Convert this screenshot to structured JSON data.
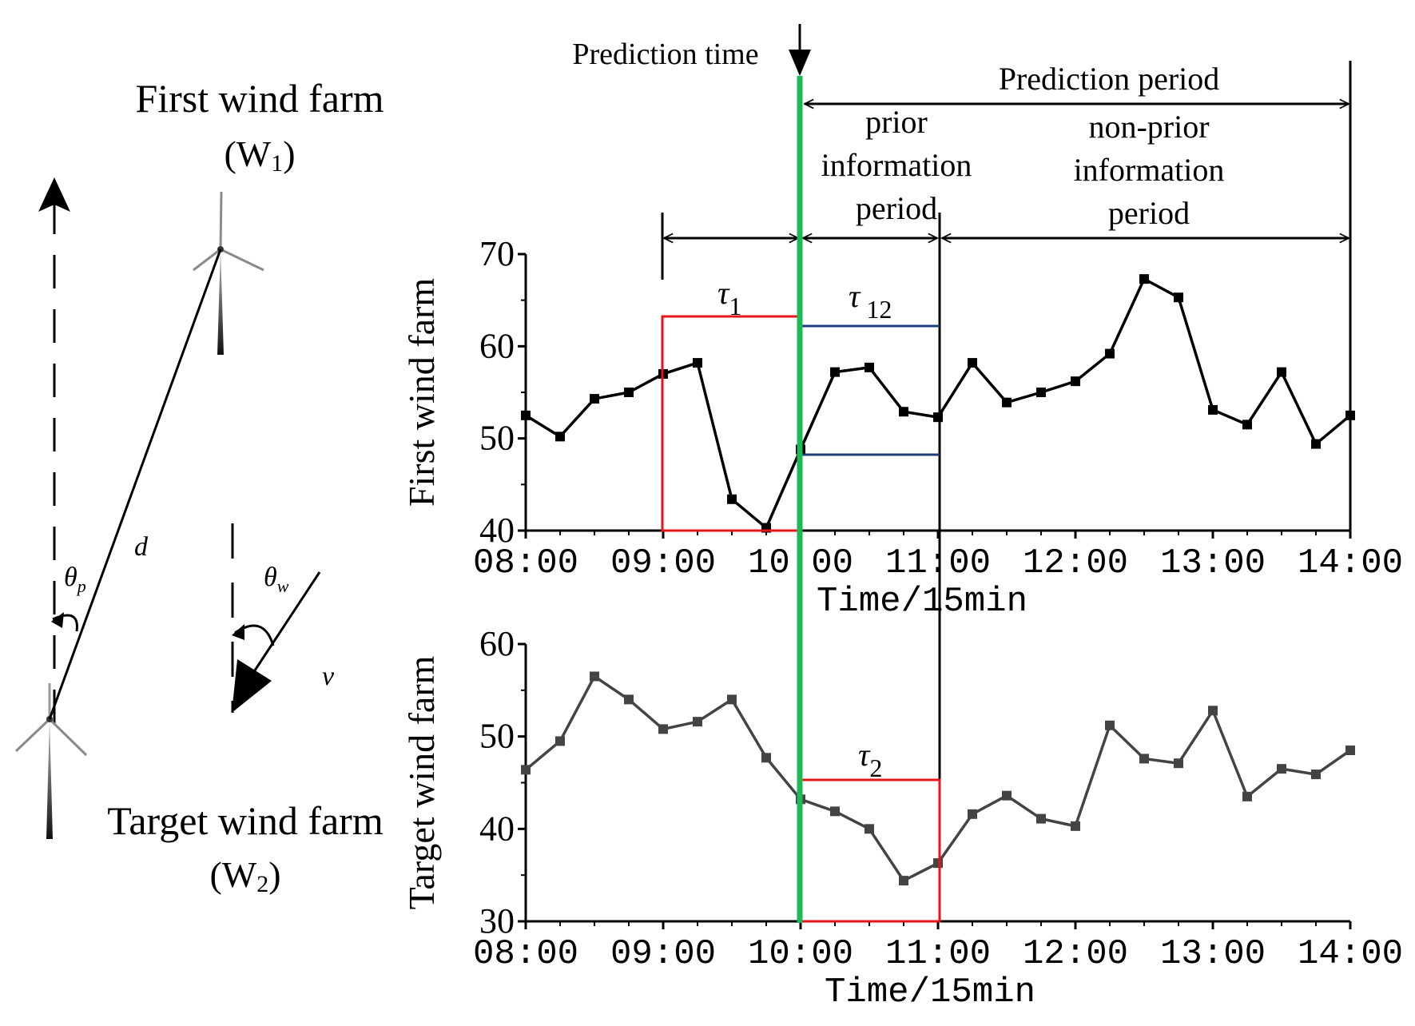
{
  "colors": {
    "axis": "#000000",
    "first_series": "#000000",
    "target_series": "#444444",
    "prediction_line": "#1db954",
    "window_red": "#e8131b",
    "window_blue": "#1f3f7a"
  },
  "diagram": {
    "first_farm_name": "First wind farm",
    "first_farm_label_pre": "(W",
    "first_farm_label_sub": "1",
    "first_farm_label_post": ")",
    "target_farm_name": "Target wind farm",
    "target_farm_label_pre": "(W",
    "target_farm_label_sub": "2",
    "target_farm_label_post": ")",
    "distance_label": "d",
    "theta_p_symbol": "θ",
    "theta_p_sub": "p",
    "theta_w_symbol": "θ",
    "theta_w_sub": "w",
    "velocity_label": "v"
  },
  "annotations": {
    "prediction_time": "Prediction time",
    "prediction_period": "Prediction period",
    "prior_line1": "prior",
    "prior_line2": "information",
    "prior_line3": "period",
    "nonprior_line1": "non-prior",
    "nonprior_line2": "information",
    "nonprior_line3": "period",
    "tau1_symbol": "τ",
    "tau1_sub": "1",
    "tau12_symbol": "τ",
    "tau12_sub": "12",
    "tau2_symbol": "τ",
    "tau2_sub": "2"
  },
  "chart_data": [
    {
      "type": "line",
      "title": "",
      "xlabel": "Time/15min",
      "ylabel": "First wind farm",
      "x_tick_labels": [
        "08:00",
        "09:00",
        "10:00",
        "11:00",
        "12:00",
        "13:00",
        "14:00"
      ],
      "y_ticks": [
        40,
        50,
        60,
        70
      ],
      "ylim": [
        40,
        70
      ],
      "x_step_hours": 0.25,
      "values": [
        52.5,
        50.2,
        54.3,
        55.0,
        57.0,
        58.2,
        43.4,
        40.3,
        48.8,
        57.2,
        57.7,
        52.9,
        52.3,
        58.2,
        53.9,
        55.0,
        56.2,
        59.2,
        67.3,
        65.3,
        53.1,
        51.5,
        57.2,
        49.4,
        52.5
      ]
    },
    {
      "type": "line",
      "title": "",
      "xlabel": "Time/15min",
      "ylabel": "Target wind farm",
      "x_tick_labels": [
        "08:00",
        "09:00",
        "10:00",
        "11:00",
        "12:00",
        "13:00",
        "14:00"
      ],
      "y_ticks": [
        30,
        40,
        50,
        60
      ],
      "ylim": [
        30,
        60
      ],
      "x_step_hours": 0.25,
      "values": [
        46.4,
        49.5,
        56.5,
        54.0,
        50.8,
        51.6,
        54.0,
        47.7,
        43.2,
        41.9,
        40.0,
        34.4,
        36.3,
        41.6,
        43.6,
        41.1,
        40.3,
        51.2,
        47.6,
        47.1,
        52.8,
        43.5,
        46.5,
        45.9,
        48.5
      ]
    }
  ]
}
